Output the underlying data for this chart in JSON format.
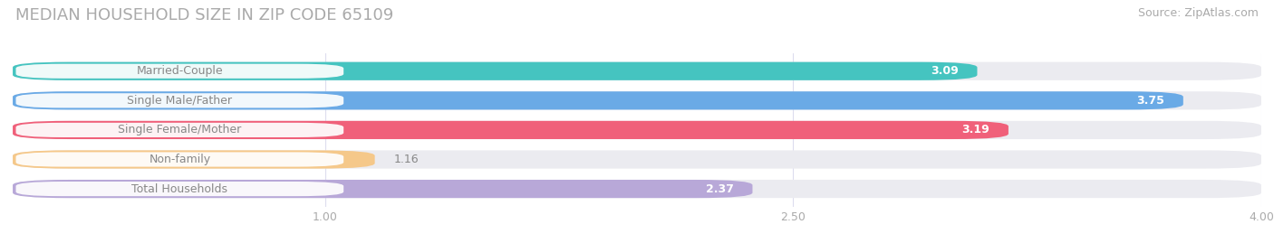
{
  "title": "MEDIAN HOUSEHOLD SIZE IN ZIP CODE 65109",
  "source": "Source: ZipAtlas.com",
  "categories": [
    "Married-Couple",
    "Single Male/Father",
    "Single Female/Mother",
    "Non-family",
    "Total Households"
  ],
  "values": [
    3.09,
    3.75,
    3.19,
    1.16,
    2.37
  ],
  "bar_colors": [
    "#45c4c0",
    "#6aaae6",
    "#f0607a",
    "#f5c88a",
    "#b8a8d8"
  ],
  "label_text_colors": [
    "#888888",
    "#888888",
    "#888888",
    "#888888",
    "#888888"
  ],
  "value_text_colors_inside": [
    "white",
    "white",
    "white",
    "white",
    "white"
  ],
  "xlim_data": [
    0.0,
    4.0
  ],
  "xstart": 0.0,
  "xend": 4.0,
  "xticks": [
    1.0,
    2.5,
    4.0
  ],
  "xtick_labels": [
    "1.00",
    "2.50",
    "4.00"
  ],
  "background_color": "#ffffff",
  "bar_bg_color": "#ebebf0",
  "title_fontsize": 13,
  "source_fontsize": 9,
  "label_fontsize": 9,
  "value_fontsize": 9
}
